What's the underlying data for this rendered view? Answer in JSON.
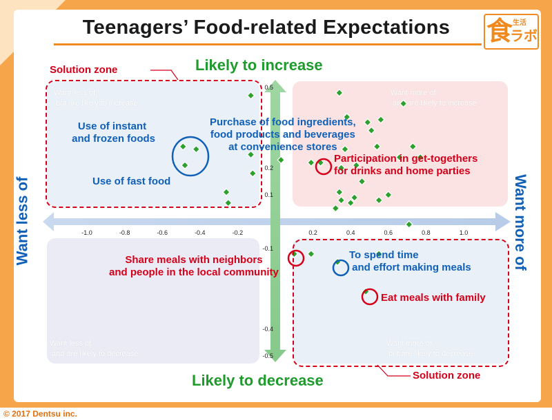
{
  "title": "Teenagers’ Food-related Expectations",
  "logo": {
    "kanji": "食",
    "small": "生活",
    "kana": "ラボ"
  },
  "copyright": "© 2017 Dentsu inc.",
  "colors": {
    "frame": "#f6a54a",
    "accent": "#f08a1f",
    "green": "#1f9b2e",
    "blue": "#1060b8",
    "red": "#d4001a",
    "marker": "#2ea02e",
    "zone_pink": "#fbe3e3",
    "zone_blue": "#e9f0f8",
    "zone_lav": "#ebebf6"
  },
  "labels": {
    "likely_increase": "Likely to increase",
    "likely_decrease": "Likely to decrease",
    "want_less": "Want less of",
    "want_more": "Want more of",
    "solution_zone_top": "Solution zone",
    "solution_zone_bottom": "Solution zone"
  },
  "quadrants": {
    "top_left": "Want less of,\n but are likely to increase",
    "top_right": "Want more of,\n and are likely to increase",
    "bottom_left": "Want less of,\n and are likely to decrease",
    "bottom_right": "Want more of,\n but are likely to decrease"
  },
  "annotations": {
    "instant": "Use of instant\n and frozen foods",
    "fast_food": "Use of fast food",
    "convenience": "Purchase of food ingredients,\nfood products and beverages\nat convenience stores",
    "gettogether": "Participation in get-togethers\nfor drinks and home parties",
    "neighbors": "Share meals with neighbors\nand people in the local community",
    "spend_time": "To spend time\n and effort making meals",
    "family": "Eat meals with family"
  },
  "chart_data": {
    "type": "scatter",
    "title": "",
    "xlabel": "",
    "ylabel": "",
    "xlim": [
      -1.1,
      1.2
    ],
    "ylim": [
      -0.55,
      0.55
    ],
    "grid": false,
    "x_ticks": [
      -1.0,
      -0.8,
      -0.6,
      -0.4,
      -0.2,
      0.2,
      0.4,
      0.6,
      0.8,
      1.0
    ],
    "y_ticks": [
      0.5,
      0.2,
      0.1,
      -0.1,
      -0.4,
      -0.5
    ],
    "x_tick_labels": [
      "-1.0",
      "-0.8",
      "-0.6",
      "-0.4",
      "-0.2",
      "0.2",
      "0.4",
      "0.6",
      "0.8",
      "1.0"
    ],
    "y_tick_labels": [
      "0.5",
      "0.2",
      "0.1",
      "-0.1",
      "-0.4",
      "-0.5"
    ],
    "points": [
      {
        "x": -0.49,
        "y": 0.28
      },
      {
        "x": -0.42,
        "y": 0.27
      },
      {
        "x": -0.48,
        "y": 0.21
      },
      {
        "x": -0.13,
        "y": 0.47
      },
      {
        "x": -0.13,
        "y": 0.25
      },
      {
        "x": -0.12,
        "y": 0.18
      },
      {
        "x": -0.26,
        "y": 0.11
      },
      {
        "x": -0.25,
        "y": 0.07
      },
      {
        "x": 0.03,
        "y": 0.23
      },
      {
        "x": 0.34,
        "y": 0.48
      },
      {
        "x": 0.38,
        "y": 0.39
      },
      {
        "x": 0.49,
        "y": 0.37
      },
      {
        "x": 0.51,
        "y": 0.34
      },
      {
        "x": 0.56,
        "y": 0.38
      },
      {
        "x": 0.68,
        "y": 0.44
      },
      {
        "x": 0.73,
        "y": 0.28
      },
      {
        "x": 0.77,
        "y": 0.24
      },
      {
        "x": 0.66,
        "y": 0.24
      },
      {
        "x": 0.54,
        "y": 0.28
      },
      {
        "x": 0.37,
        "y": 0.27
      },
      {
        "x": 0.19,
        "y": 0.22
      },
      {
        "x": 0.24,
        "y": 0.22
      },
      {
        "x": 0.35,
        "y": 0.2
      },
      {
        "x": 0.43,
        "y": 0.21
      },
      {
        "x": 0.46,
        "y": 0.15
      },
      {
        "x": 0.34,
        "y": 0.11
      },
      {
        "x": 0.35,
        "y": 0.08
      },
      {
        "x": 0.4,
        "y": 0.07
      },
      {
        "x": 0.42,
        "y": 0.09
      },
      {
        "x": 0.32,
        "y": 0.05
      },
      {
        "x": 0.55,
        "y": 0.08
      },
      {
        "x": 0.6,
        "y": 0.1
      },
      {
        "x": 0.71,
        "y": -0.01
      },
      {
        "x": 0.1,
        "y": -0.12
      },
      {
        "x": 0.19,
        "y": -0.12
      },
      {
        "x": 0.33,
        "y": -0.15
      },
      {
        "x": 0.55,
        "y": -0.12
      },
      {
        "x": 0.48,
        "y": -0.26
      }
    ]
  }
}
